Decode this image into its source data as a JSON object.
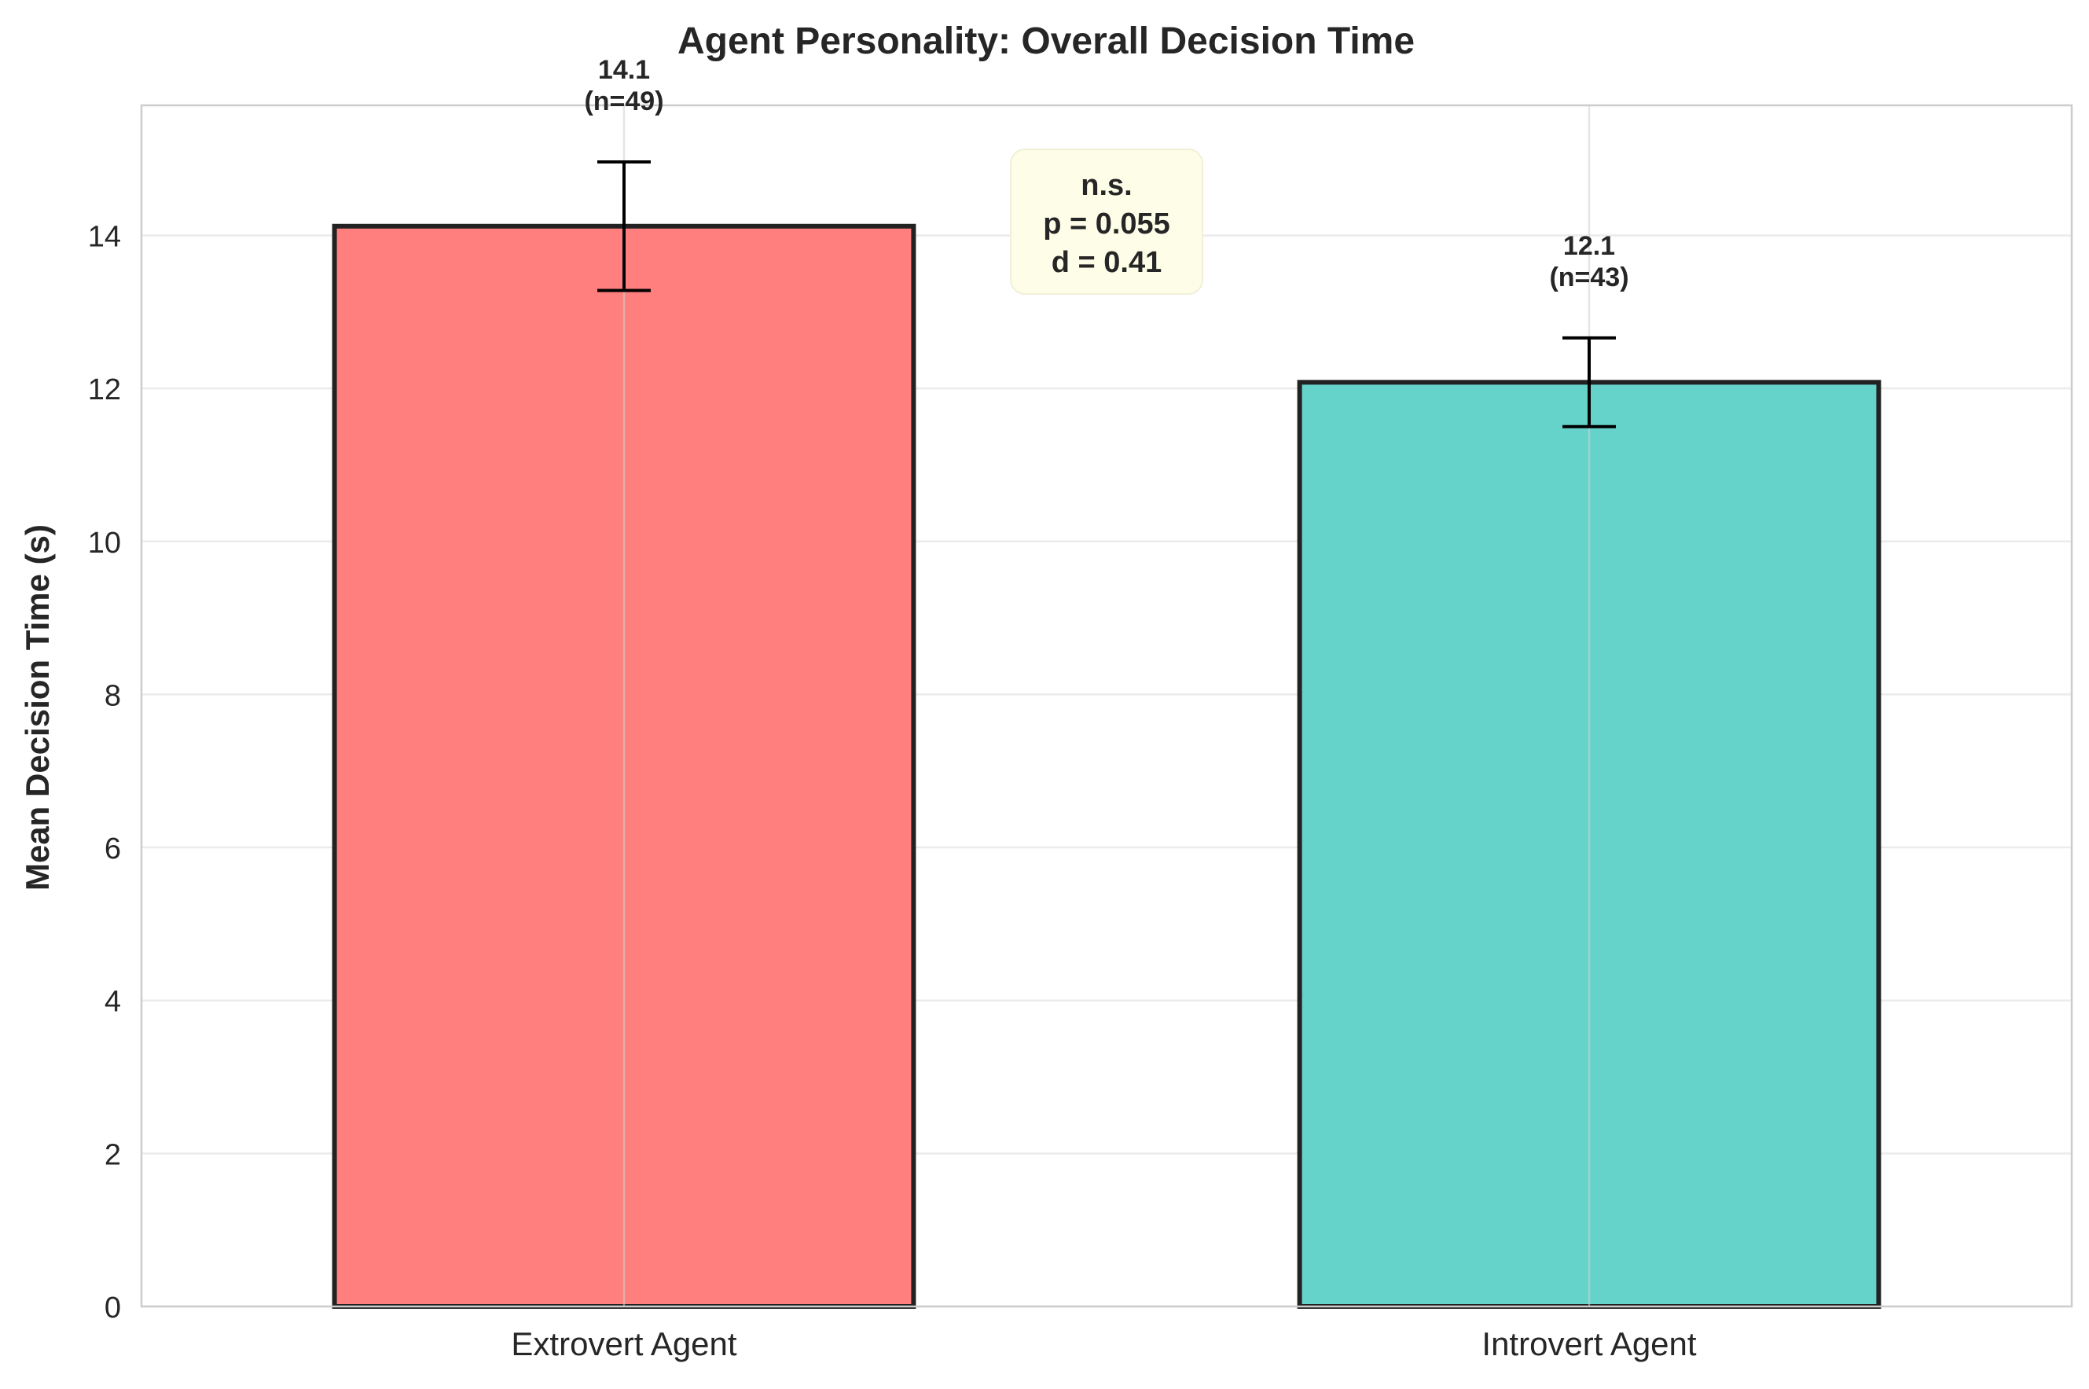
{
  "chart_data": {
    "type": "bar",
    "title": "Agent Personality: Overall Decision Time",
    "xlabel": "",
    "ylabel": "Mean Decision Time (s)",
    "categories": [
      "Extrovert Agent",
      "Introvert Agent"
    ],
    "values": [
      14.12,
      12.08
    ],
    "error": [
      0.84,
      0.58
    ],
    "value_labels": [
      "14.1",
      "12.1"
    ],
    "n_labels": [
      "(n=49)",
      "(n=43)"
    ],
    "colors": [
      "#ff7f7f",
      "#66d3cb"
    ],
    "ylim": [
      0,
      15.7
    ],
    "yticks": [
      0,
      2,
      4,
      6,
      8,
      10,
      12,
      14
    ],
    "grid": true,
    "annotation": {
      "lines": [
        "n.s.",
        "p = 0.055",
        "d = 0.41"
      ],
      "background": "#fefee8"
    }
  }
}
